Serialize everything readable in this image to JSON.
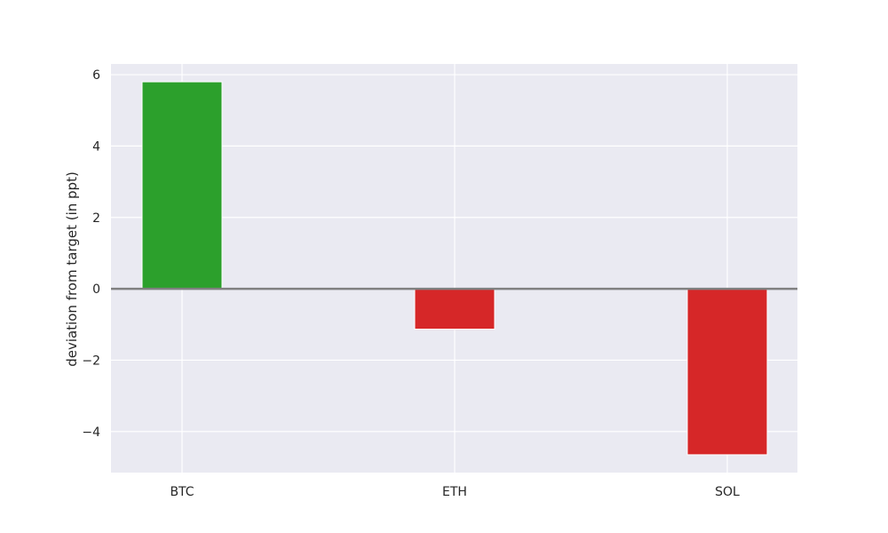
{
  "chart_data": {
    "type": "bar",
    "categories": [
      "BTC",
      "ETH",
      "SOL"
    ],
    "values": [
      5.8,
      -1.13,
      -4.65
    ],
    "bar_colors": [
      "#2ca02c",
      "#d62728",
      "#d62728"
    ],
    "title": "",
    "xlabel": "",
    "ylabel": "deviation from target (in ppt)",
    "ylim": [
      -5.15,
      6.3
    ],
    "yticks": [
      -4,
      -2,
      0,
      2,
      4,
      6
    ],
    "ytick_labels": [
      "−4",
      "−2",
      "0",
      "2",
      "4",
      "6"
    ],
    "grid": true,
    "background": "#eaeaf2",
    "grid_color": "#ffffff",
    "zero_line_color": "#808080"
  }
}
